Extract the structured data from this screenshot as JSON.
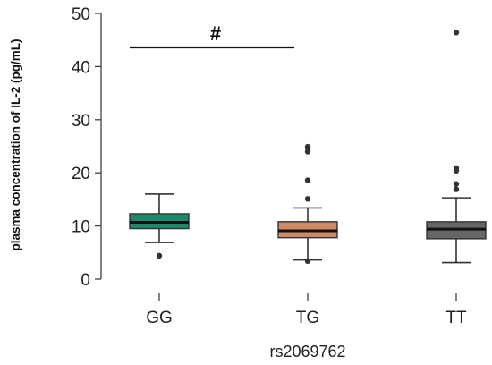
{
  "chart_data": {
    "type": "box",
    "xlabel": "rs2069762",
    "ylabel": "plasma concentration of IL-2 (pg/mL)",
    "ylim": [
      0,
      50
    ],
    "yticks": [
      0,
      10,
      20,
      30,
      40,
      50
    ],
    "grid": false,
    "groups": [
      {
        "name": "GG",
        "color": "#1a8a6b",
        "min": 6.9,
        "q1": 9.5,
        "median": 10.7,
        "q3": 12.3,
        "max": 16.0,
        "outliers": [
          4.4
        ]
      },
      {
        "name": "TG",
        "color": "#cf8a63",
        "min": 3.6,
        "q1": 7.8,
        "median": 9.1,
        "q3": 10.8,
        "max": 13.4,
        "outliers": [
          3.4,
          15.1,
          18.6,
          24.0,
          24.9
        ]
      },
      {
        "name": "TT",
        "color": "#666666",
        "min": 3.1,
        "q1": 7.6,
        "median": 9.4,
        "q3": 10.8,
        "max": 15.3,
        "outliers": [
          16.9,
          17.9,
          20.4,
          20.9,
          46.4
        ]
      }
    ],
    "annotations": [
      {
        "text": "#",
        "from": "GG",
        "to": "TG",
        "y": 43.6
      }
    ]
  }
}
